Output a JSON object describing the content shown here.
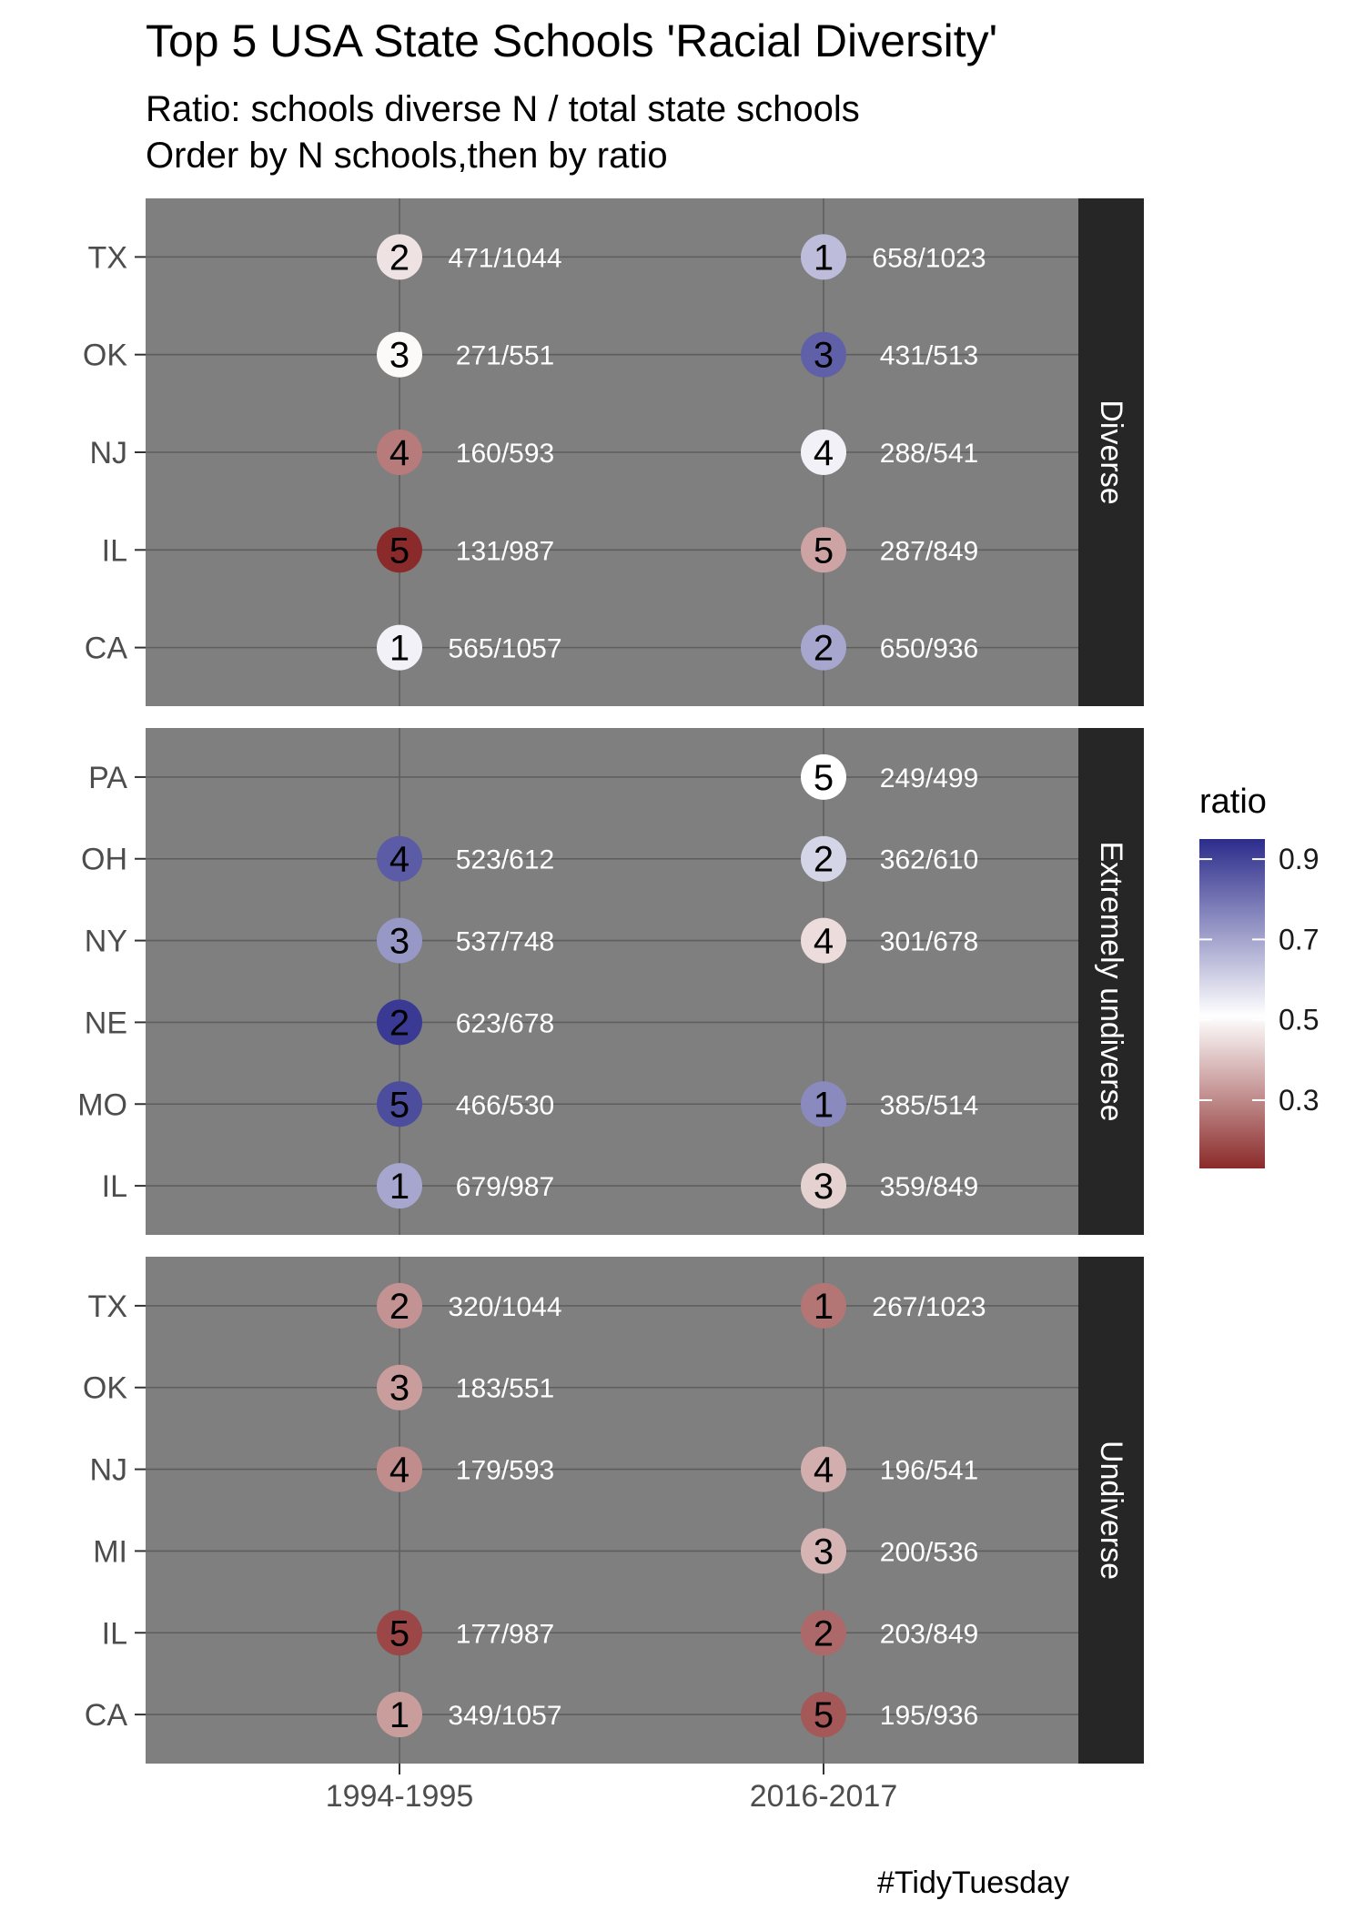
{
  "chart_data": {
    "type": "scatter",
    "title": "Top 5 USA State Schools 'Racial Diversity'",
    "subtitle_lines": [
      "Ratio:  schools diverse N / total state schools",
      "Order by N schools,then by ratio"
    ],
    "caption": "#TidyTuesday",
    "x_categories": [
      "1994-1995",
      "2016-2017"
    ],
    "color_scale": {
      "title": "ratio",
      "breaks": [
        "0.9",
        "0.7",
        "0.5",
        "0.3"
      ],
      "range": [
        0.13,
        0.95
      ],
      "low_color": "#8b2a2a",
      "mid_color": "#ffffff",
      "high_color": "#2c2c8c"
    },
    "panel_background": "#7f7f7f",
    "strip_background": "#262626",
    "facets": [
      {
        "label": "Diverse",
        "states": [
          "CA",
          "IL",
          "NJ",
          "OK",
          "TX"
        ],
        "points": [
          {
            "x": "1994-1995",
            "state": "TX",
            "rank": "2",
            "label": "471/1044",
            "ratio": 0.45
          },
          {
            "x": "1994-1995",
            "state": "OK",
            "rank": "3",
            "label": "271/551",
            "ratio": 0.49
          },
          {
            "x": "1994-1995",
            "state": "NJ",
            "rank": "4",
            "label": "160/593",
            "ratio": 0.27
          },
          {
            "x": "1994-1995",
            "state": "IL",
            "rank": "5",
            "label": "131/987",
            "ratio": 0.13
          },
          {
            "x": "1994-1995",
            "state": "CA",
            "rank": "1",
            "label": "565/1057",
            "ratio": 0.53
          },
          {
            "x": "2016-2017",
            "state": "TX",
            "rank": "1",
            "label": "658/1023",
            "ratio": 0.64
          },
          {
            "x": "2016-2017",
            "state": "OK",
            "rank": "3",
            "label": "431/513",
            "ratio": 0.84
          },
          {
            "x": "2016-2017",
            "state": "NJ",
            "rank": "4",
            "label": "288/541",
            "ratio": 0.53
          },
          {
            "x": "2016-2017",
            "state": "IL",
            "rank": "5",
            "label": "287/849",
            "ratio": 0.34
          },
          {
            "x": "2016-2017",
            "state": "CA",
            "rank": "2",
            "label": "650/936",
            "ratio": 0.69
          }
        ]
      },
      {
        "label": "Extremely undiverse",
        "states": [
          "IL",
          "MO",
          "NE",
          "NY",
          "OH",
          "PA"
        ],
        "points": [
          {
            "x": "1994-1995",
            "state": "OH",
            "rank": "4",
            "label": "523/612",
            "ratio": 0.85
          },
          {
            "x": "1994-1995",
            "state": "NY",
            "rank": "3",
            "label": "537/748",
            "ratio": 0.72
          },
          {
            "x": "1994-1995",
            "state": "NE",
            "rank": "2",
            "label": "623/678",
            "ratio": 0.92
          },
          {
            "x": "1994-1995",
            "state": "MO",
            "rank": "5",
            "label": "466/530",
            "ratio": 0.88
          },
          {
            "x": "1994-1995",
            "state": "IL",
            "rank": "1",
            "label": "679/987",
            "ratio": 0.69
          },
          {
            "x": "2016-2017",
            "state": "PA",
            "rank": "5",
            "label": "249/499",
            "ratio": 0.5
          },
          {
            "x": "2016-2017",
            "state": "OH",
            "rank": "2",
            "label": "362/610",
            "ratio": 0.59
          },
          {
            "x": "2016-2017",
            "state": "NY",
            "rank": "4",
            "label": "301/678",
            "ratio": 0.44
          },
          {
            "x": "2016-2017",
            "state": "MO",
            "rank": "1",
            "label": "385/514",
            "ratio": 0.75
          },
          {
            "x": "2016-2017",
            "state": "IL",
            "rank": "3",
            "label": "359/849",
            "ratio": 0.42
          }
        ]
      },
      {
        "label": "Undiverse",
        "states": [
          "CA",
          "IL",
          "MI",
          "NJ",
          "OK",
          "TX"
        ],
        "points": [
          {
            "x": "1994-1995",
            "state": "TX",
            "rank": "2",
            "label": "320/1044",
            "ratio": 0.31
          },
          {
            "x": "1994-1995",
            "state": "OK",
            "rank": "3",
            "label": "183/551",
            "ratio": 0.33
          },
          {
            "x": "1994-1995",
            "state": "NJ",
            "rank": "4",
            "label": "179/593",
            "ratio": 0.3
          },
          {
            "x": "1994-1995",
            "state": "IL",
            "rank": "5",
            "label": "177/987",
            "ratio": 0.18
          },
          {
            "x": "1994-1995",
            "state": "CA",
            "rank": "1",
            "label": "349/1057",
            "ratio": 0.33
          },
          {
            "x": "2016-2017",
            "state": "TX",
            "rank": "1",
            "label": "267/1023",
            "ratio": 0.26
          },
          {
            "x": "2016-2017",
            "state": "NJ",
            "rank": "4",
            "label": "196/541",
            "ratio": 0.36
          },
          {
            "x": "2016-2017",
            "state": "MI",
            "rank": "3",
            "label": "200/536",
            "ratio": 0.37
          },
          {
            "x": "2016-2017",
            "state": "IL",
            "rank": "2",
            "label": "203/849",
            "ratio": 0.24
          },
          {
            "x": "2016-2017",
            "state": "CA",
            "rank": "5",
            "label": "195/936",
            "ratio": 0.21
          }
        ]
      }
    ]
  }
}
